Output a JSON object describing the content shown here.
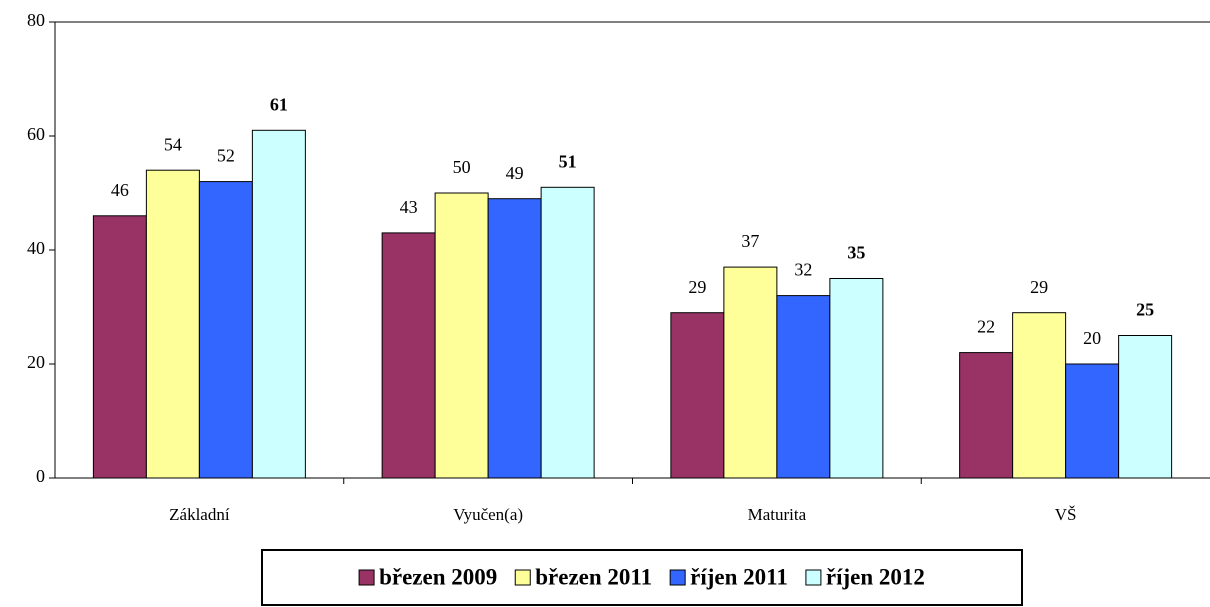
{
  "chart_data": {
    "type": "bar",
    "categories": [
      "Základní",
      "Vyučen(a)",
      "Maturita",
      "VŠ"
    ],
    "series": [
      {
        "name": "březen 2009",
        "color": "#993366",
        "values": [
          46,
          43,
          29,
          22
        ]
      },
      {
        "name": "březen 2011",
        "color": "#ffff99",
        "values": [
          54,
          50,
          37,
          29
        ]
      },
      {
        "name": "říjen 2011",
        "color": "#3366ff",
        "values": [
          52,
          49,
          32,
          20
        ]
      },
      {
        "name": "říjen 2012",
        "color": "#ccffff",
        "values": [
          61,
          51,
          35,
          25
        ],
        "label_bold": true
      }
    ],
    "ylim": [
      0,
      80
    ],
    "yticks": [
      0,
      20,
      40,
      60,
      80
    ],
    "grid": false,
    "legend": "bottom"
  }
}
